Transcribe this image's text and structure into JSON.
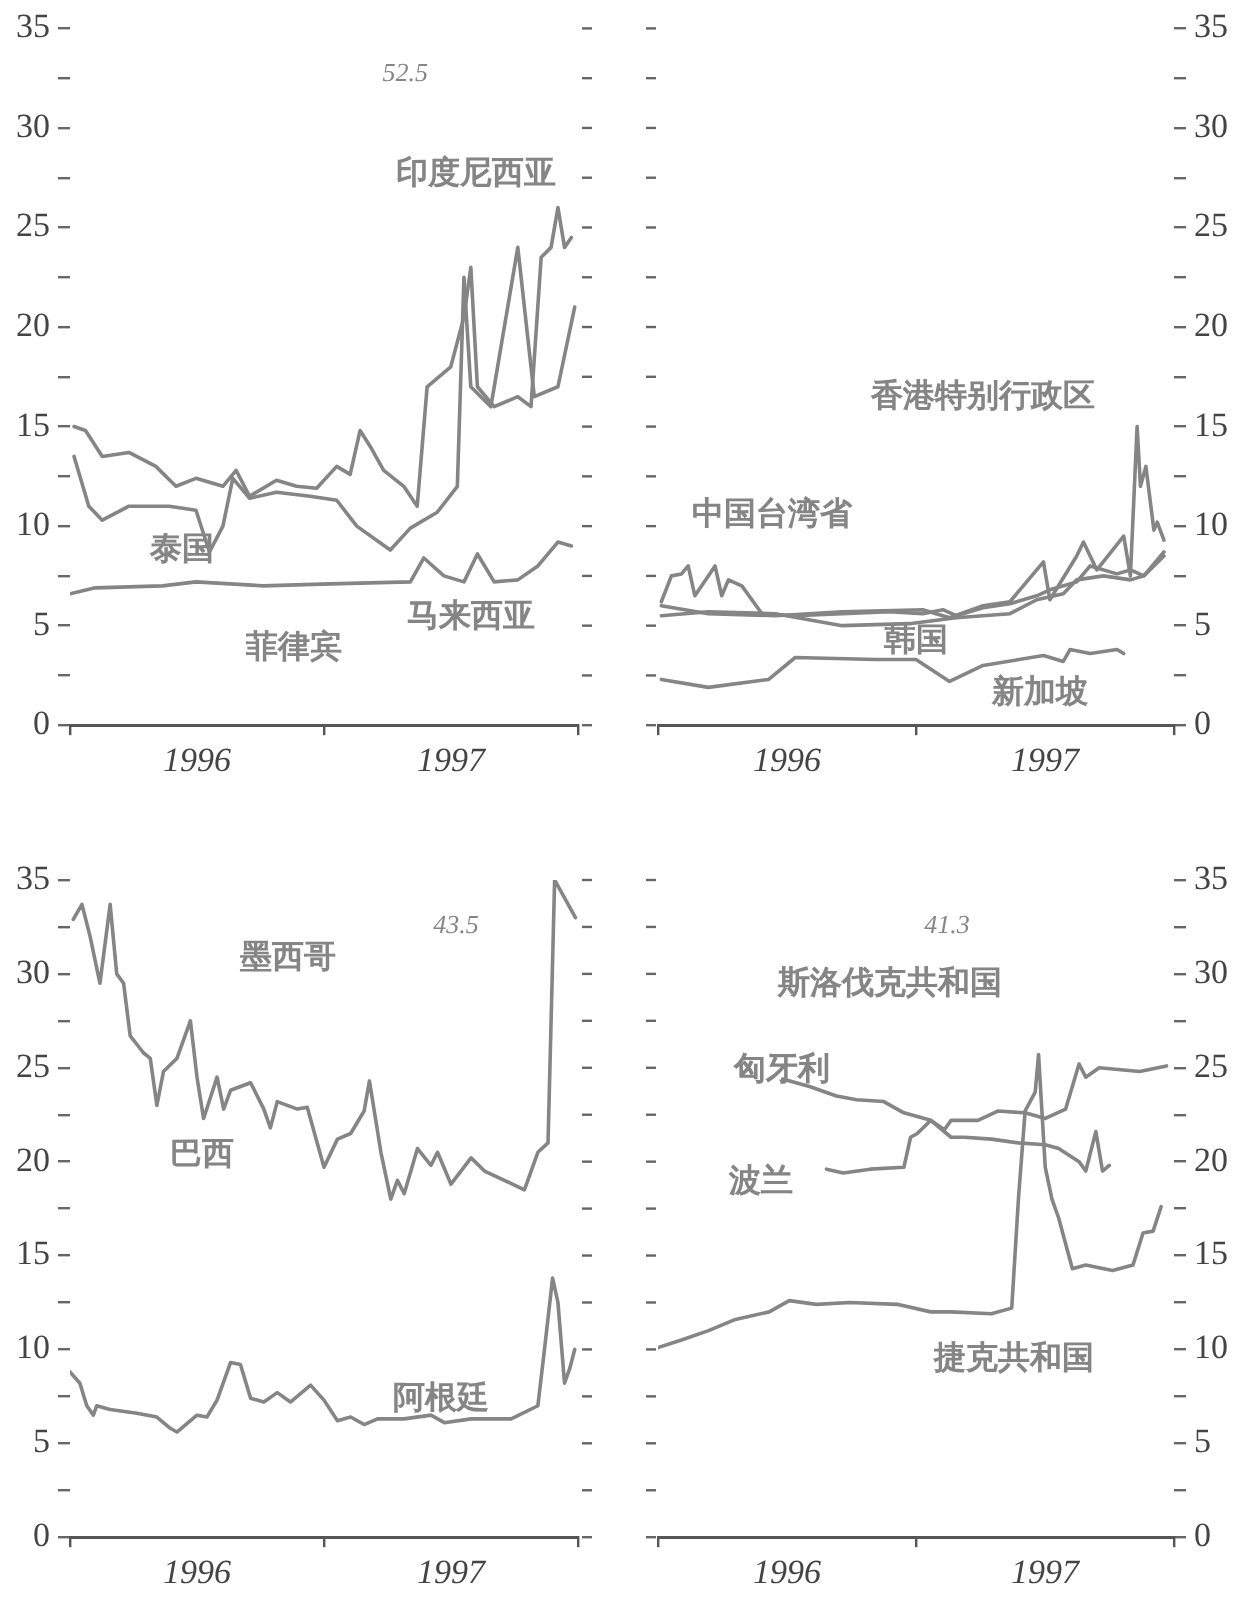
{
  "chart_data": [
    {
      "type": "line",
      "xlim": [
        1996,
        1998
      ],
      "xticks": [
        {
          "value": 1996,
          "label": null
        },
        {
          "value": 1996.5,
          "label": "1996"
        },
        {
          "value": 1997,
          "label": null
        },
        {
          "value": 1997.5,
          "label": "1997"
        },
        {
          "value": 1998,
          "label": null
        }
      ],
      "ylim": [
        0,
        35
      ],
      "yticks": [
        0,
        {
          "value": 2.5,
          "label": null
        },
        5,
        {
          "value": 7.5,
          "label": null
        },
        10,
        {
          "value": 12.5,
          "label": null
        },
        15,
        {
          "value": 17.5,
          "label": null
        },
        20,
        {
          "value": 22.5,
          "label": null
        },
        25,
        {
          "value": 27.5,
          "label": null
        },
        30,
        {
          "value": 32.5,
          "label": null
        },
        35
      ],
      "grid": false,
      "legend": false,
      "marker": "none",
      "line_style": "solid",
      "annotations": [
        "52.5",
        "菲律宾"
      ],
      "series": [
        {
          "name": "印度尼西亚",
          "color": "#858585",
          "x": [
            1996.016,
            1996.061,
            1996.127,
            1996.232,
            1996.338,
            1996.417,
            1996.496,
            1996.602,
            1996.654,
            1996.707,
            1996.813,
            1996.892,
            1996.971,
            1997.05,
            1997.103,
            1997.142,
            1997.182,
            1997.235,
            1997.314,
            1997.367,
            1997.406,
            1997.499,
            1997.551,
            1997.578,
            1997.604,
            1997.67,
            1997.763,
            1997.815,
            1997.855,
            1997.894,
            1997.921,
            1997.947,
            1997.974
          ],
          "values": [
            15,
            14.8,
            13.5,
            13.7,
            13,
            12,
            12.4,
            12,
            12.8,
            11.5,
            12.3,
            12,
            11.9,
            13,
            12.6,
            14.8,
            14,
            12.8,
            12,
            11,
            17,
            18,
            20.5,
            23,
            17,
            16,
            16.5,
            16,
            23.5,
            24,
            26,
            24,
            24.5
          ]
        },
        {
          "name": "泰国",
          "color": "#858585",
          "x": [
            1996.016,
            1996.074,
            1996.127,
            1996.232,
            1996.391,
            1996.496,
            1996.549,
            1996.602,
            1996.641,
            1996.707,
            1996.813,
            1996.945,
            1997.05,
            1997.129,
            1997.261,
            1997.34,
            1997.446,
            1997.525,
            1997.551,
            1997.578,
            1997.657,
            1997.763,
            1997.828,
            1997.921,
            1997.987
          ],
          "values": [
            13.5,
            11,
            10.3,
            11,
            11,
            10.8,
            8.7,
            10,
            12.4,
            11.4,
            11.7,
            11.5,
            11.3,
            10,
            8.8,
            9.9,
            10.7,
            12,
            22.5,
            17,
            16,
            24,
            16.5,
            17,
            21
          ]
        },
        {
          "name": "马来西亚",
          "color": "#858585",
          "x": [
            1996.0,
            1996.1,
            1996.364,
            1996.496,
            1996.76,
            1997.024,
            1997.34,
            1997.393,
            1997.472,
            1997.551,
            1997.604,
            1997.67,
            1997.763,
            1997.842,
            1997.921,
            1997.974
          ],
          "values": [
            6.6,
            6.9,
            7,
            7.2,
            7,
            7.1,
            7.2,
            8.4,
            7.5,
            7.2,
            8.6,
            7.2,
            7.3,
            8,
            9.2,
            9
          ]
        }
      ]
    },
    {
      "type": "line",
      "xlim": [
        1996,
        1998
      ],
      "xticks": [
        {
          "value": 1996,
          "label": null
        },
        {
          "value": 1996.5,
          "label": "1996"
        },
        {
          "value": 1997,
          "label": null
        },
        {
          "value": 1997.5,
          "label": "1997"
        },
        {
          "value": 1998,
          "label": null
        }
      ],
      "ylim": [
        0,
        35
      ],
      "yticks": [
        0,
        {
          "value": 2.5,
          "label": null
        },
        5,
        {
          "value": 7.5,
          "label": null
        },
        10,
        {
          "value": 12.5,
          "label": null
        },
        15,
        {
          "value": 17.5,
          "label": null
        },
        20,
        {
          "value": 22.5,
          "label": null
        },
        25,
        {
          "value": 27.5,
          "label": null
        },
        30,
        {
          "value": 32.5,
          "label": null
        },
        35
      ],
      "grid": false,
      "legend": false,
      "marker": "none",
      "line_style": "solid",
      "series": [
        {
          "name": "中国台湾省",
          "color": "#858585",
          "x": [
            1996.013,
            1996.052,
            1996.091,
            1996.117,
            1996.143,
            1996.195,
            1996.221,
            1996.247,
            1996.273,
            1996.325,
            1996.403,
            1996.532,
            1996.714,
            1996.896,
            1997.026,
            1997.104,
            1997.156,
            1997.26,
            1997.364,
            1997.468,
            1997.519,
            1997.623,
            1997.675,
            1997.779,
            1997.831,
            1997.883,
            1997.961
          ],
          "values": [
            6.2,
            7.5,
            7.6,
            8,
            6.5,
            7.5,
            8,
            6.5,
            7.3,
            7,
            5.6,
            5.5,
            5.6,
            5.7,
            5.6,
            5.8,
            5.5,
            5.9,
            6.1,
            6.5,
            6.8,
            7.2,
            8,
            7.6,
            7.8,
            7.5,
            8.5
          ]
        },
        {
          "name": "韩国",
          "color": "#858585",
          "x": [
            1996.013,
            1996.195,
            1996.455,
            1996.714,
            1996.974,
            1997.156,
            1997.364,
            1997.468,
            1997.571,
            1997.623,
            1997.727,
            1997.831,
            1997.883,
            1997.961
          ],
          "values": [
            5.5,
            5.7,
            5.6,
            5.0,
            5.1,
            5.4,
            5.6,
            6.3,
            6.6,
            7.3,
            7.5,
            7.3,
            7.5,
            8.7
          ]
        },
        {
          "name": "香港特别行政区",
          "color": "#858585",
          "x": [
            1996.013,
            1996.195,
            1996.455,
            1996.714,
            1997.026,
            1997.13,
            1997.26,
            1997.364,
            1997.494,
            1997.519,
            1997.623,
            1997.649,
            1997.701,
            1997.805,
            1997.831,
            1997.857,
            1997.87,
            1997.891,
            1997.922,
            1997.935,
            1997.961
          ],
          "values": [
            6.0,
            5.6,
            5.5,
            5.7,
            5.8,
            5.4,
            6,
            6.2,
            8.2,
            6.3,
            8.5,
            9.2,
            7.8,
            9.5,
            7.5,
            15,
            12,
            13,
            9.8,
            10.2,
            9.3
          ]
        },
        {
          "name": "新加坡",
          "color": "#858585",
          "x": [
            1996.013,
            1996.195,
            1996.429,
            1996.532,
            1996.844,
            1997.0,
            1997.13,
            1997.26,
            1997.494,
            1997.571,
            1997.597,
            1997.675,
            1997.779,
            1997.805
          ],
          "values": [
            2.3,
            1.9,
            2.3,
            3.4,
            3.3,
            3.3,
            2.2,
            3,
            3.5,
            3.2,
            3.8,
            3.6,
            3.8,
            3.6
          ]
        }
      ]
    },
    {
      "type": "line",
      "xlim": [
        1996,
        1998
      ],
      "xticks": [
        {
          "value": 1996,
          "label": null
        },
        {
          "value": 1996.5,
          "label": "1996"
        },
        {
          "value": 1997,
          "label": null
        },
        {
          "value": 1997.5,
          "label": "1997"
        },
        {
          "value": 1998,
          "label": null
        }
      ],
      "ylim": [
        0,
        35
      ],
      "yticks": [
        0,
        {
          "value": 2.5,
          "label": null
        },
        5,
        {
          "value": 7.5,
          "label": null
        },
        10,
        {
          "value": 12.5,
          "label": null
        },
        15,
        {
          "value": 17.5,
          "label": null
        },
        20,
        {
          "value": 22.5,
          "label": null
        },
        25,
        {
          "value": 27.5,
          "label": null
        },
        30,
        {
          "value": 32.5,
          "label": null
        },
        35
      ],
      "grid": false,
      "legend": false,
      "marker": "none",
      "line_style": "solid",
      "annotations": [
        "43.5",
        "巴西"
      ],
      "series": [
        {
          "name": "墨西哥",
          "color": "#858585",
          "x": [
            1996.013,
            1996.047,
            1996.079,
            1996.118,
            1996.158,
            1996.184,
            1996.211,
            1996.237,
            1996.289,
            1996.316,
            1996.342,
            1996.368,
            1996.421,
            1996.474,
            1996.5,
            1996.526,
            1996.579,
            1996.605,
            1996.632,
            1996.711,
            1996.763,
            1996.789,
            1996.816,
            1996.895,
            1996.934,
            1997.0,
            1997.053,
            1997.105,
            1997.158,
            1997.179,
            1997.224,
            1997.263,
            1997.289,
            1997.316,
            1997.368,
            1997.421,
            1997.447,
            1997.5,
            1997.579,
            1997.632,
            1997.789,
            1997.842,
            1997.882,
            1997.908,
            1997.99
          ],
          "values": [
            32.9,
            33.7,
            32,
            29.5,
            33.7,
            30,
            29.5,
            26.7,
            25.8,
            25.5,
            23,
            24.8,
            25.5,
            27.5,
            24.5,
            22.3,
            24.5,
            22.8,
            23.8,
            24.2,
            22.8,
            21.8,
            23.2,
            22.8,
            22.9,
            19.7,
            21.2,
            21.5,
            22.7,
            24.3,
            20.5,
            18,
            19,
            18.3,
            20.7,
            19.8,
            20.5,
            18.8,
            20.2,
            19.5,
            18.5,
            20.5,
            21,
            35,
            33
          ]
        },
        {
          "name": "阿根廷",
          "color": "#858585",
          "x": [
            1996.0,
            1996.039,
            1996.066,
            1996.092,
            1996.105,
            1996.158,
            1996.263,
            1996.342,
            1996.395,
            1996.421,
            1996.5,
            1996.539,
            1996.579,
            1996.632,
            1996.671,
            1996.711,
            1996.763,
            1996.816,
            1996.868,
            1996.947,
            1997.0,
            1997.053,
            1997.105,
            1997.158,
            1997.211,
            1997.316,
            1997.421,
            1997.474,
            1997.579,
            1997.737,
            1997.842,
            1997.868,
            1997.9,
            1997.921,
            1997.947,
            1997.968,
            1997.987
          ],
          "values": [
            8.8,
            8.2,
            7,
            6.5,
            7,
            6.8,
            6.6,
            6.4,
            5.8,
            5.6,
            6.5,
            6.4,
            7.3,
            9.3,
            9.2,
            7.4,
            7.2,
            7.7,
            7.2,
            8.1,
            7.3,
            6.2,
            6.4,
            6,
            6.3,
            6.3,
            6.5,
            6.1,
            6.3,
            6.3,
            7,
            10,
            13.8,
            12.5,
            8.2,
            9,
            10
          ]
        }
      ]
    },
    {
      "type": "line",
      "xlim": [
        1996,
        1998
      ],
      "xticks": [
        {
          "value": 1996,
          "label": null
        },
        {
          "value": 1996.5,
          "label": "1996"
        },
        {
          "value": 1997,
          "label": null
        },
        {
          "value": 1997.5,
          "label": "1997"
        },
        {
          "value": 1998,
          "label": null
        }
      ],
      "ylim": [
        0,
        35
      ],
      "yticks": [
        0,
        {
          "value": 2.5,
          "label": null
        },
        5,
        {
          "value": 7.5,
          "label": null
        },
        10,
        {
          "value": 12.5,
          "label": null
        },
        15,
        {
          "value": 17.5,
          "label": null
        },
        20,
        {
          "value": 22.5,
          "label": null
        },
        25,
        {
          "value": 27.5,
          "label": null
        },
        30,
        {
          "value": 32.5,
          "label": null
        },
        35
      ],
      "grid": false,
      "legend": false,
      "marker": "none",
      "line_style": "solid",
      "annotations": [
        "41.3",
        "斯洛伐克共和国"
      ],
      "series": [
        {
          "name": "匈牙利",
          "color": "#858585",
          "x": [
            1996.483,
            1996.587,
            1996.692,
            1996.77,
            1996.875,
            1996.953,
            1997.057,
            1997.136,
            1997.188,
            1997.292,
            1997.397,
            1997.501,
            1997.553,
            1997.632,
            1997.658,
            1997.697,
            1997.723,
            1997.749
          ],
          "values": [
            24.4,
            24,
            23.5,
            23.3,
            23.2,
            22.6,
            22.2,
            21.3,
            21.3,
            21.2,
            21,
            20.9,
            20.7,
            20,
            19.5,
            21.6,
            19.5,
            19.8
          ]
        },
        {
          "name": "波兰",
          "color": "#858585",
          "x": [
            1996.653,
            1996.718,
            1996.822,
            1996.953,
            1996.979,
            1997.005,
            1997.057,
            1997.11,
            1997.136,
            1997.24,
            1997.319,
            1997.423,
            1997.501,
            1997.58,
            1997.632,
            1997.658,
            1997.71,
            1997.867,
            1997.971
          ],
          "values": [
            19.6,
            19.4,
            19.6,
            19.7,
            21.3,
            21.5,
            22.2,
            21.7,
            22.2,
            22.2,
            22.7,
            22.6,
            22.3,
            22.8,
            25.2,
            24.5,
            25,
            24.8,
            25.1
          ]
        },
        {
          "name": "捷克共和国",
          "color": "#858585",
          "x": [
            1996.0,
            1996.091,
            1996.196,
            1996.3,
            1996.431,
            1996.509,
            1996.614,
            1996.744,
            1996.927,
            1997.057,
            1997.136,
            1997.292,
            1997.371,
            1997.397,
            1997.423,
            1997.462,
            1997.475,
            1997.501,
            1997.527,
            1997.553,
            1997.606,
            1997.658,
            1997.762,
            1997.841,
            1997.88,
            1997.919,
            1997.95
          ],
          "values": [
            10.1,
            10.5,
            11,
            11.6,
            12,
            12.6,
            12.4,
            12.5,
            12.4,
            12,
            12,
            11.9,
            12.2,
            18,
            22.7,
            23.7,
            25.7,
            19.7,
            18,
            17,
            14.3,
            14.5,
            14.2,
            14.5,
            16.2,
            16.3,
            17.6
          ]
        }
      ]
    }
  ]
}
